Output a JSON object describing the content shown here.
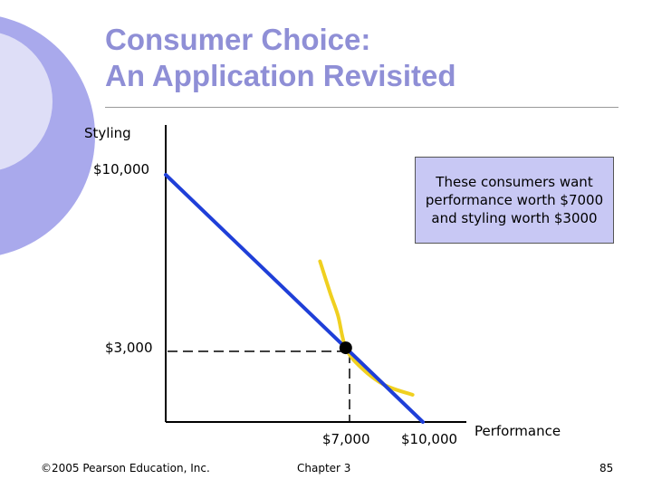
{
  "title": {
    "line1": "Consumer Choice:",
    "line2": "An Application Revisited"
  },
  "colors": {
    "title": "#8f8fd6",
    "budget_line": "#1f3fd8",
    "indifference_curve": "#f0d020",
    "callout_bg": "#c8c8f4",
    "decor_light": "#dedef7",
    "decor_mid": "#a9a9ec"
  },
  "chart_data": {
    "type": "line",
    "xlabel": "Performance",
    "ylabel": "Styling",
    "x_ticks": [
      "$7,000",
      "$10,000"
    ],
    "y_ticks": [
      "$10,000",
      "$3,000"
    ],
    "budget_line": [
      [
        0,
        10000
      ],
      [
        10000,
        0
      ]
    ],
    "indifference_curve": [
      [
        6000,
        6500
      ],
      [
        6400,
        5200
      ],
      [
        6700,
        4300
      ],
      [
        7000,
        3000
      ],
      [
        7600,
        2200
      ],
      [
        8500,
        1500
      ],
      [
        9600,
        1100
      ]
    ],
    "optimal_point": {
      "x": 7000,
      "y": 3000
    },
    "xlim": [
      0,
      10000
    ],
    "ylim": [
      0,
      10000
    ]
  },
  "callout": {
    "text": "These consumers want performance worth $7000 and styling worth $3000"
  },
  "footer": {
    "copyright": "©2005 Pearson Education, Inc.",
    "chapter": "Chapter 3",
    "page": "85"
  }
}
